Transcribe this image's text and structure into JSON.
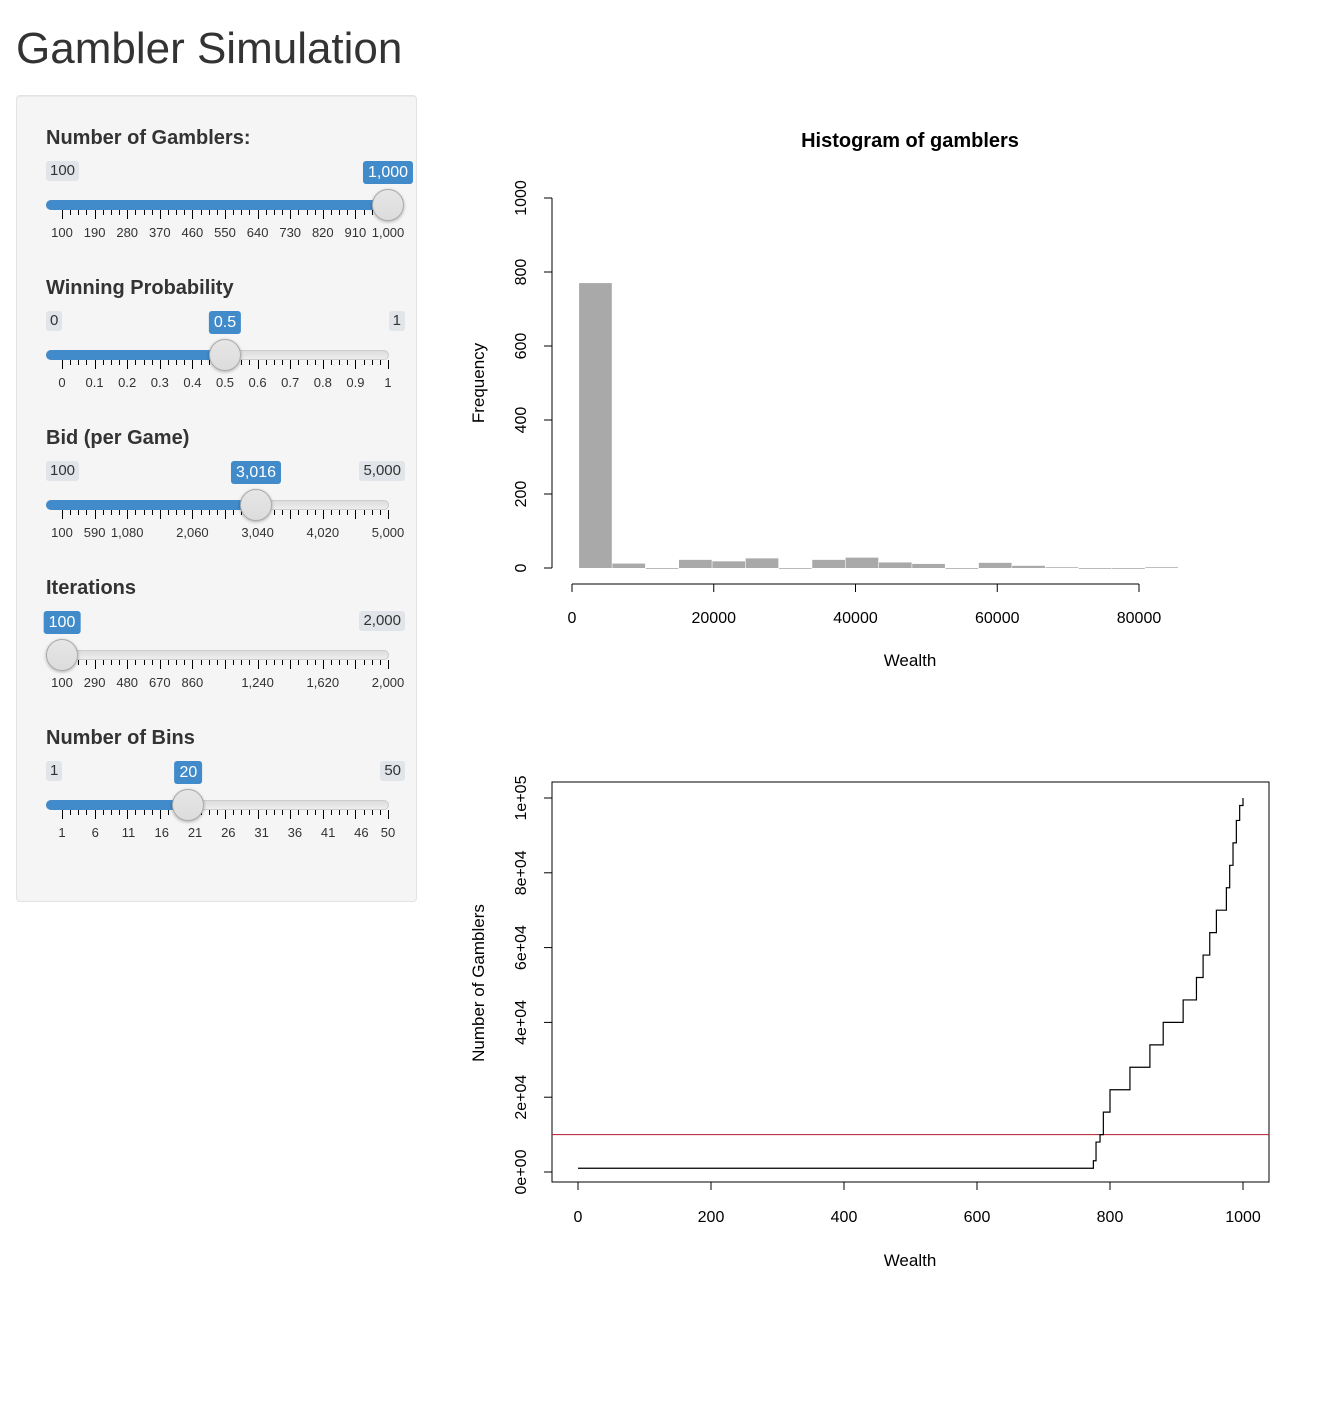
{
  "app": {
    "title": "Gambler Simulation"
  },
  "sliders": [
    {
      "id": "gamblers",
      "label": "Number of Gamblers:",
      "min": 100,
      "max": 2000,
      "display_min": 100,
      "display_max": 1000,
      "value": 1000,
      "min_label": "100",
      "max_label": "1,000",
      "value_label": "1,000",
      "show_max_badge": false,
      "tick_labels": [
        "100",
        "190",
        "280",
        "370",
        "460",
        "550",
        "640",
        "730",
        "820",
        "910",
        "1,000"
      ],
      "tick_values": [
        100,
        190,
        280,
        370,
        460,
        550,
        640,
        730,
        820,
        910,
        1000
      ],
      "range": [
        100,
        1000
      ]
    },
    {
      "id": "prob",
      "label": "Winning Probability",
      "min_label": "0",
      "max_label": "1",
      "value_label": "0.5",
      "value": 0.5,
      "show_max_badge": true,
      "tick_labels": [
        "0",
        "0.1",
        "0.2",
        "0.3",
        "0.4",
        "0.5",
        "0.6",
        "0.7",
        "0.8",
        "0.9",
        "1"
      ],
      "tick_values": [
        0,
        0.1,
        0.2,
        0.3,
        0.4,
        0.5,
        0.6,
        0.7,
        0.8,
        0.9,
        1
      ],
      "range": [
        0,
        1
      ]
    },
    {
      "id": "bid",
      "label": "Bid (per Game)",
      "min_label": "100",
      "max_label": "5,000",
      "value_label": "3,016",
      "value": 3016,
      "show_max_badge": true,
      "tick_labels": [
        "100",
        "590",
        "1,080",
        "2,060",
        "3,040",
        "4,020",
        "5,000"
      ],
      "tick_values": [
        100,
        590,
        1080,
        2060,
        3040,
        4020,
        5000
      ],
      "range": [
        100,
        5000
      ]
    },
    {
      "id": "iterations",
      "label": "Iterations",
      "min_label": "100",
      "max_label": "2,000",
      "value_label": "100",
      "value": 100,
      "show_max_badge": true,
      "tick_labels": [
        "100",
        "290",
        "480",
        "670",
        "860",
        "1,240",
        "1,620",
        "2,000"
      ],
      "tick_values": [
        100,
        290,
        480,
        670,
        860,
        1240,
        1620,
        2000
      ],
      "range": [
        100,
        2000
      ]
    },
    {
      "id": "bins",
      "label": "Number of Bins",
      "min_label": "1",
      "max_label": "50",
      "value_label": "20",
      "value": 20,
      "show_max_badge": true,
      "tick_labels": [
        "1",
        "6",
        "11",
        "16",
        "21",
        "26",
        "31",
        "36",
        "41",
        "46",
        "50"
      ],
      "tick_values": [
        1,
        6,
        11,
        16,
        21,
        26,
        31,
        36,
        41,
        46,
        50
      ],
      "range": [
        1,
        50
      ]
    }
  ],
  "colors": {
    "accent": "#428bca",
    "bar_fill": "#a9a9a9",
    "ref_line": "#b2182b"
  },
  "chart_data": [
    {
      "type": "bar",
      "title": "Histogram of gamblers",
      "xlabel": "Wealth",
      "ylabel": "Frequency",
      "xlim": [
        0,
        85000
      ],
      "ylim": [
        0,
        1000
      ],
      "x_ticks": [
        0,
        20000,
        40000,
        60000,
        80000
      ],
      "x_tick_labels": [
        "0",
        "20000",
        "40000",
        "60000",
        "80000"
      ],
      "y_ticks": [
        0,
        200,
        400,
        600,
        800,
        1000
      ],
      "y_tick_labels": [
        "0",
        "200",
        "400",
        "600",
        "800",
        "1000"
      ],
      "bin_edges": [
        1000,
        5700,
        10400,
        15100,
        19800,
        24500,
        29200,
        33900,
        38600,
        43300,
        48000,
        52700,
        57400,
        62100,
        66800,
        71500,
        76200,
        80900,
        85600
      ],
      "counts": [
        770,
        12,
        0,
        22,
        18,
        26,
        0,
        22,
        28,
        15,
        11,
        0,
        14,
        6,
        2,
        0,
        0,
        2
      ]
    },
    {
      "type": "line",
      "title": "",
      "xlabel": "Wealth",
      "ylabel": "Number of Gamblers",
      "xlim": [
        0,
        1000
      ],
      "ylim": [
        -4000,
        101000
      ],
      "x_ticks": [
        0,
        200,
        400,
        600,
        800,
        1000
      ],
      "x_tick_labels": [
        "0",
        "200",
        "400",
        "600",
        "800",
        "1000"
      ],
      "y_ticks": [
        0,
        20000,
        40000,
        60000,
        80000,
        100000
      ],
      "y_tick_labels": [
        "0e+00",
        "2e+04",
        "4e+04",
        "6e+04",
        "8e+04",
        "1e+05"
      ],
      "hline": 10000,
      "step_x": [
        0,
        770,
        775,
        779,
        785,
        790,
        800,
        830,
        860,
        880,
        910,
        930,
        940,
        950,
        960,
        975,
        980,
        985,
        990,
        995,
        1000
      ],
      "step_y": [
        1000,
        1000,
        3000,
        8000,
        10000,
        16000,
        22000,
        28000,
        34000,
        40000,
        46000,
        52000,
        58000,
        64000,
        70000,
        76000,
        82000,
        88000,
        94000,
        98000,
        100000
      ]
    }
  ]
}
